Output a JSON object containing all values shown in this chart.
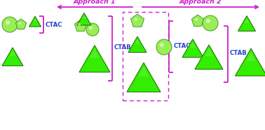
{
  "bg_color": "#ffffff",
  "approach1_label": "Approach 1",
  "approach2_label": "Approach 2",
  "ctac_label": "CTAC",
  "ctab_label": "CTAB",
  "triangle_fill": "#33ee00",
  "triangle_edge": "#227700",
  "sphere_fill": "#99ee55",
  "sphere_edge": "#449922",
  "pentagon_fill": "#99ee55",
  "pentagon_edge": "#449922",
  "bracket_color": "#cc22cc",
  "text_blue": "#2244cc",
  "text_magenta": "#cc22cc",
  "dashed_color": "#cc22cc",
  "arrow_color": "#cc22cc"
}
